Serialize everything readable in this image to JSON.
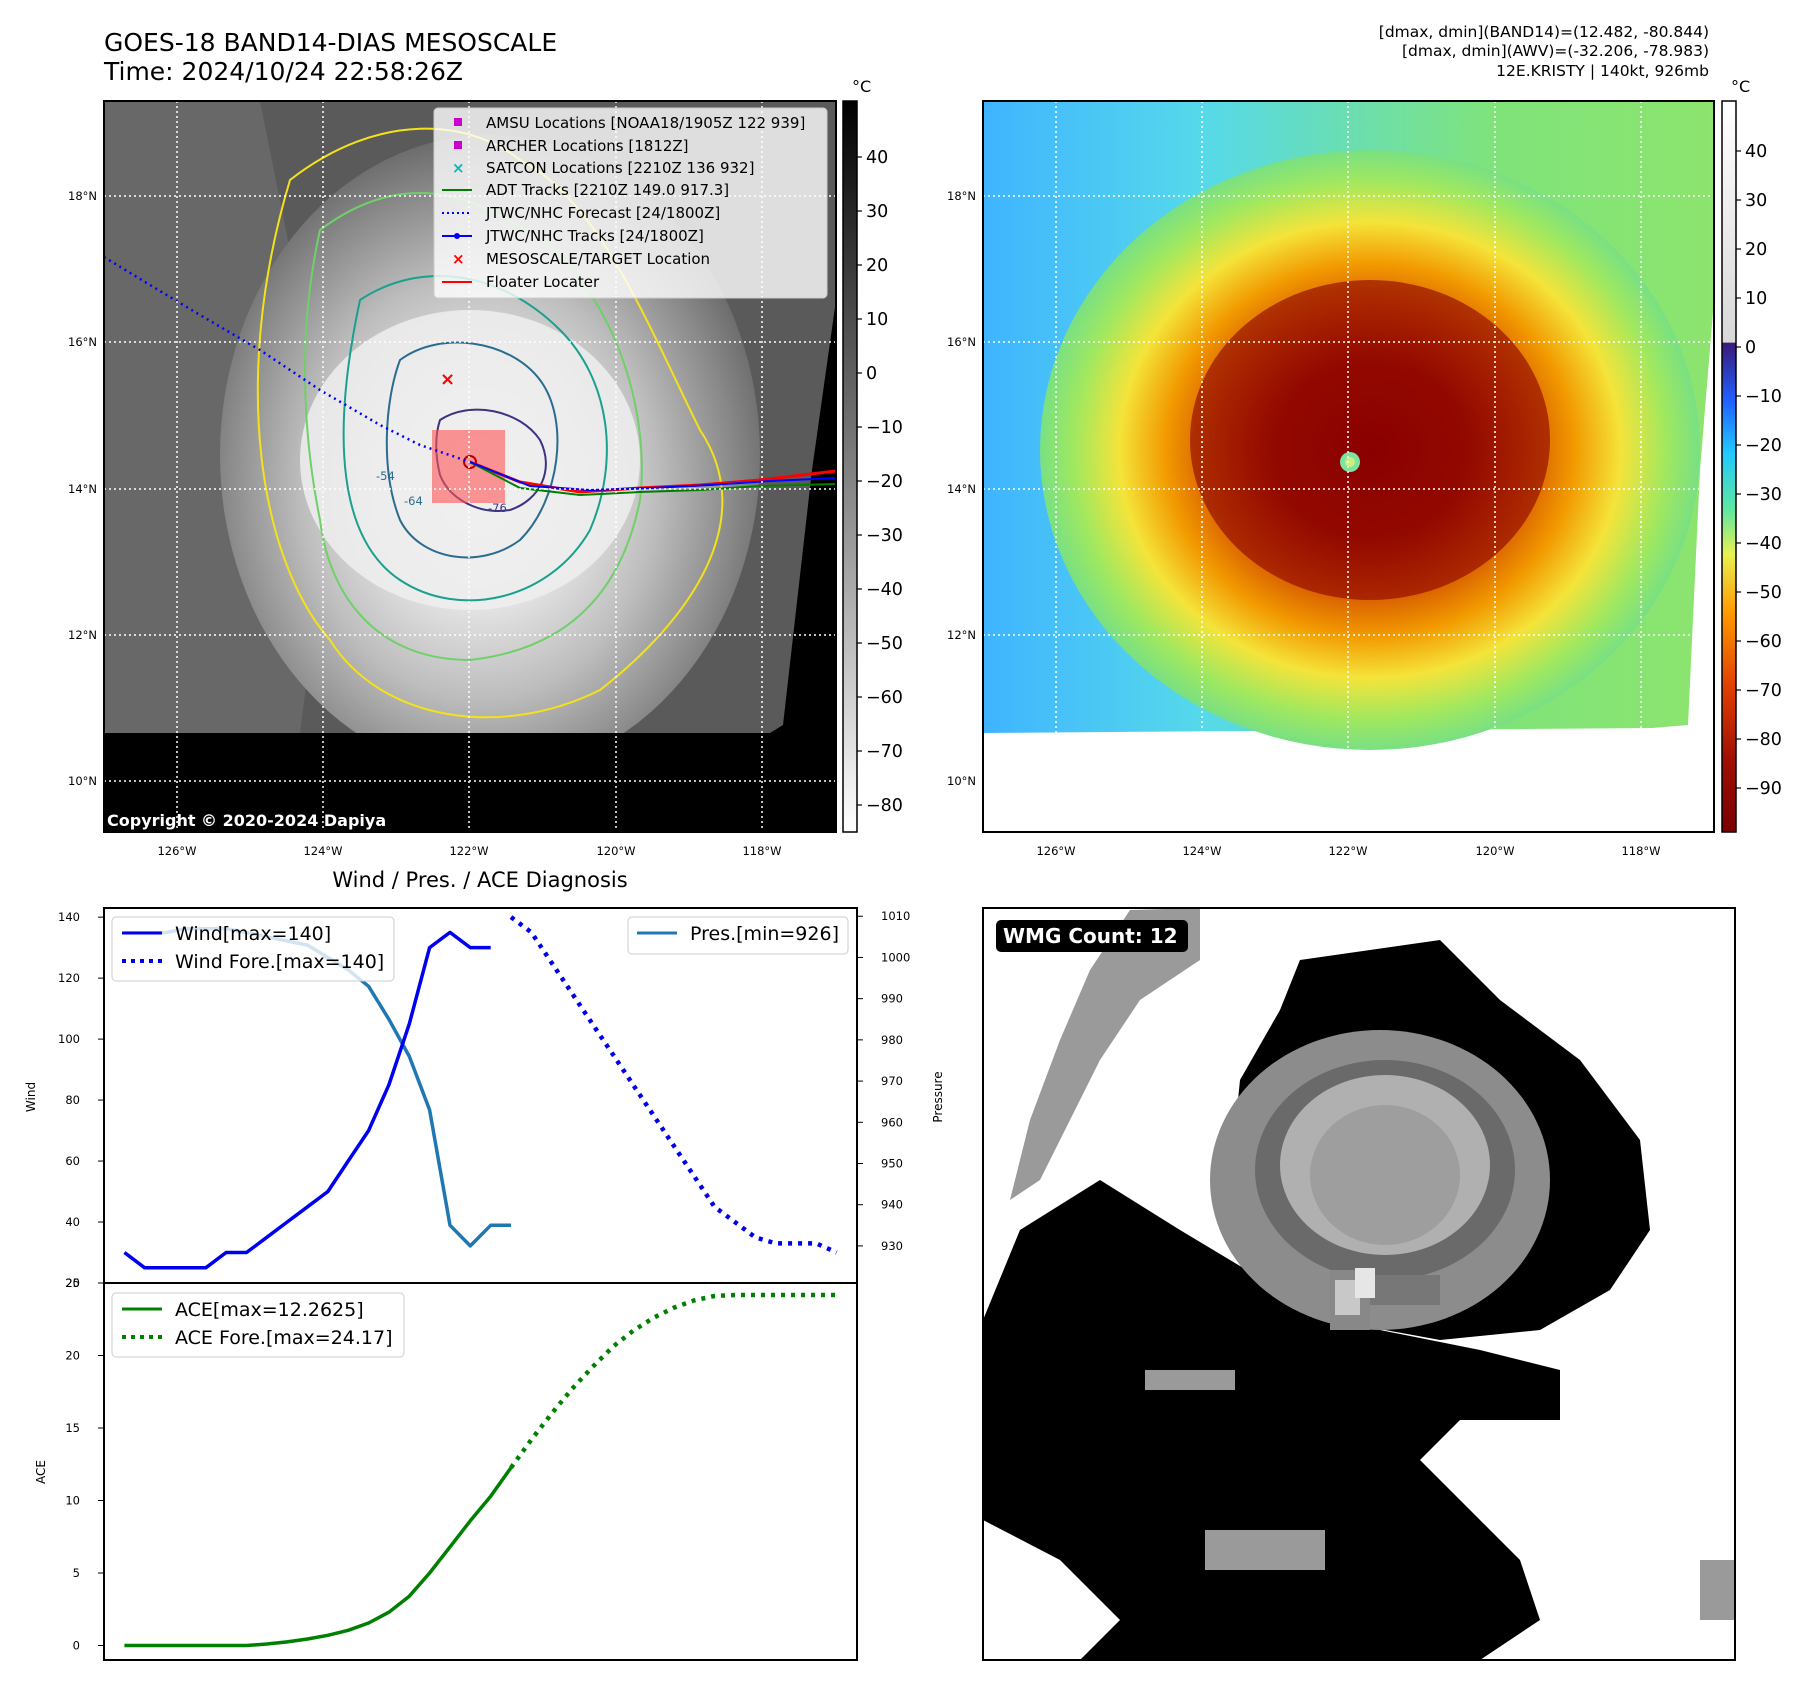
{
  "header": {
    "title_line1": "GOES-18 BAND14-DIAS MESOSCALE",
    "title_line2": "Time: 2024/10/24 22:58:26Z",
    "stats_line1": "[dmax, dmin](BAND14)=(12.482, -80.844)",
    "stats_line2": "[dmax, dmin](AWV)=(-32.206, -78.983)",
    "stats_line3": "12E.KRISTY | 140kt, 926mb"
  },
  "map": {
    "lat_labels": [
      "18°N",
      "16°N",
      "14°N",
      "12°N",
      "10°N"
    ],
    "lon_labels": [
      "126°W",
      "124°W",
      "122°W",
      "120°W",
      "118°W"
    ],
    "copyright": "Copyright © 2020-2024 Dapiya",
    "contour_labels": [
      "-54",
      "-64",
      "-76"
    ],
    "legend": [
      {
        "label": "AMSU Locations [NOAA18/1905Z 122 939]",
        "color": "#cc00cc",
        "marker": "square"
      },
      {
        "label": "ARCHER Locations [1812Z]",
        "color": "#cc00cc",
        "marker": "square"
      },
      {
        "label": "SATCON Locations [2210Z 136 932]",
        "color": "#00bbbb",
        "marker": "x"
      },
      {
        "label": "ADT Tracks [2210Z 149.0 917.3]",
        "color": "#008000",
        "marker": "line"
      },
      {
        "label": "JTWC/NHC Forecast [24/1800Z]",
        "color": "#0000ff",
        "marker": "dotted"
      },
      {
        "label": "JTWC/NHC Tracks [24/1800Z]",
        "color": "#0000ff",
        "marker": "line-dot"
      },
      {
        "label": "MESOSCALE/TARGET Location",
        "color": "#ff0000",
        "marker": "x"
      },
      {
        "label": "Floater Locater",
        "color": "#ff0000",
        "marker": "line"
      }
    ]
  },
  "colorbar_gray": {
    "unit": "°C",
    "ticks": [
      "40",
      "30",
      "20",
      "10",
      "0",
      "−10",
      "−20",
      "−30",
      "−40",
      "−50",
      "−60",
      "−70",
      "−80"
    ]
  },
  "colorbar_color": {
    "unit": "°C",
    "ticks": [
      "40",
      "30",
      "20",
      "10",
      "0",
      "−10",
      "−20",
      "−30",
      "−40",
      "−50",
      "−60",
      "−70",
      "−80",
      "−90"
    ]
  },
  "wmg": {
    "label": "WMG Count: 12"
  },
  "chart_data": [
    {
      "type": "line",
      "title": "Wind / Pres. / ACE Diagnosis",
      "ylabel": "Wind",
      "y2label": "Pressure",
      "ylim": [
        20,
        143
      ],
      "y2lim": [
        921,
        1012
      ],
      "yticks": [
        20,
        40,
        60,
        80,
        100,
        120,
        140
      ],
      "y2ticks": [
        930,
        940,
        950,
        960,
        970,
        980,
        990,
        1000,
        1010
      ],
      "series": [
        {
          "name": "Wind[max=140]",
          "axis": "left",
          "color": "#0000ee",
          "style": "solid",
          "x": [
            0,
            1,
            2,
            3,
            4,
            5,
            6,
            7,
            8,
            9,
            10,
            11,
            12,
            13,
            14,
            15,
            16,
            17,
            18
          ],
          "values": [
            30,
            25,
            25,
            25,
            25,
            30,
            30,
            35,
            40,
            45,
            50,
            60,
            70,
            85,
            105,
            130,
            135,
            130,
            130
          ]
        },
        {
          "name": "Wind Fore.[max=140]",
          "axis": "left",
          "color": "#0000ee",
          "style": "dotted",
          "x": [
            19,
            20,
            21,
            22,
            23,
            24,
            25,
            26,
            27,
            28,
            29,
            30,
            31,
            32,
            33,
            34,
            35
          ],
          "values": [
            140,
            135,
            125,
            115,
            105,
            95,
            85,
            75,
            65,
            55,
            45,
            40,
            35,
            33,
            33,
            33,
            30
          ]
        },
        {
          "name": "Pres.[min=926]",
          "axis": "right",
          "color": "#1f77b4",
          "style": "solid",
          "x": [
            0,
            1,
            2,
            3,
            4,
            5,
            6,
            7,
            8,
            9,
            10,
            11,
            12,
            13,
            14,
            15,
            16,
            17,
            18,
            19
          ],
          "values": [
            1006,
            1006,
            1006,
            1007,
            1007,
            1007,
            1006,
            1005,
            1004,
            1003,
            1000,
            997,
            993,
            985,
            976,
            963,
            935,
            930,
            935,
            935
          ]
        }
      ]
    },
    {
      "type": "line",
      "ylabel": "ACE",
      "ylim": [
        -1,
        25
      ],
      "yticks": [
        0,
        5,
        10,
        15,
        20,
        25
      ],
      "series": [
        {
          "name": "ACE[max=12.2625]",
          "color": "#008000",
          "style": "solid",
          "x": [
            0,
            1,
            2,
            3,
            4,
            5,
            6,
            7,
            8,
            9,
            10,
            11,
            12,
            13,
            14,
            15,
            16,
            17,
            18,
            19
          ],
          "values": [
            0,
            0,
            0,
            0,
            0,
            0,
            0,
            0.1,
            0.25,
            0.45,
            0.7,
            1.05,
            1.55,
            2.3,
            3.4,
            5.0,
            6.8,
            8.6,
            10.3,
            12.26
          ]
        },
        {
          "name": "ACE Fore.[max=24.17]",
          "color": "#008000",
          "style": "dotted",
          "x": [
            19,
            20,
            21,
            22,
            23,
            24,
            25,
            26,
            27,
            28,
            29,
            30,
            31,
            32,
            33,
            34,
            35
          ],
          "values": [
            12.26,
            14.2,
            16.0,
            17.7,
            19.2,
            20.6,
            21.7,
            22.6,
            23.3,
            23.8,
            24.1,
            24.17,
            24.17,
            24.17,
            24.17,
            24.17,
            24.17
          ]
        }
      ]
    }
  ]
}
